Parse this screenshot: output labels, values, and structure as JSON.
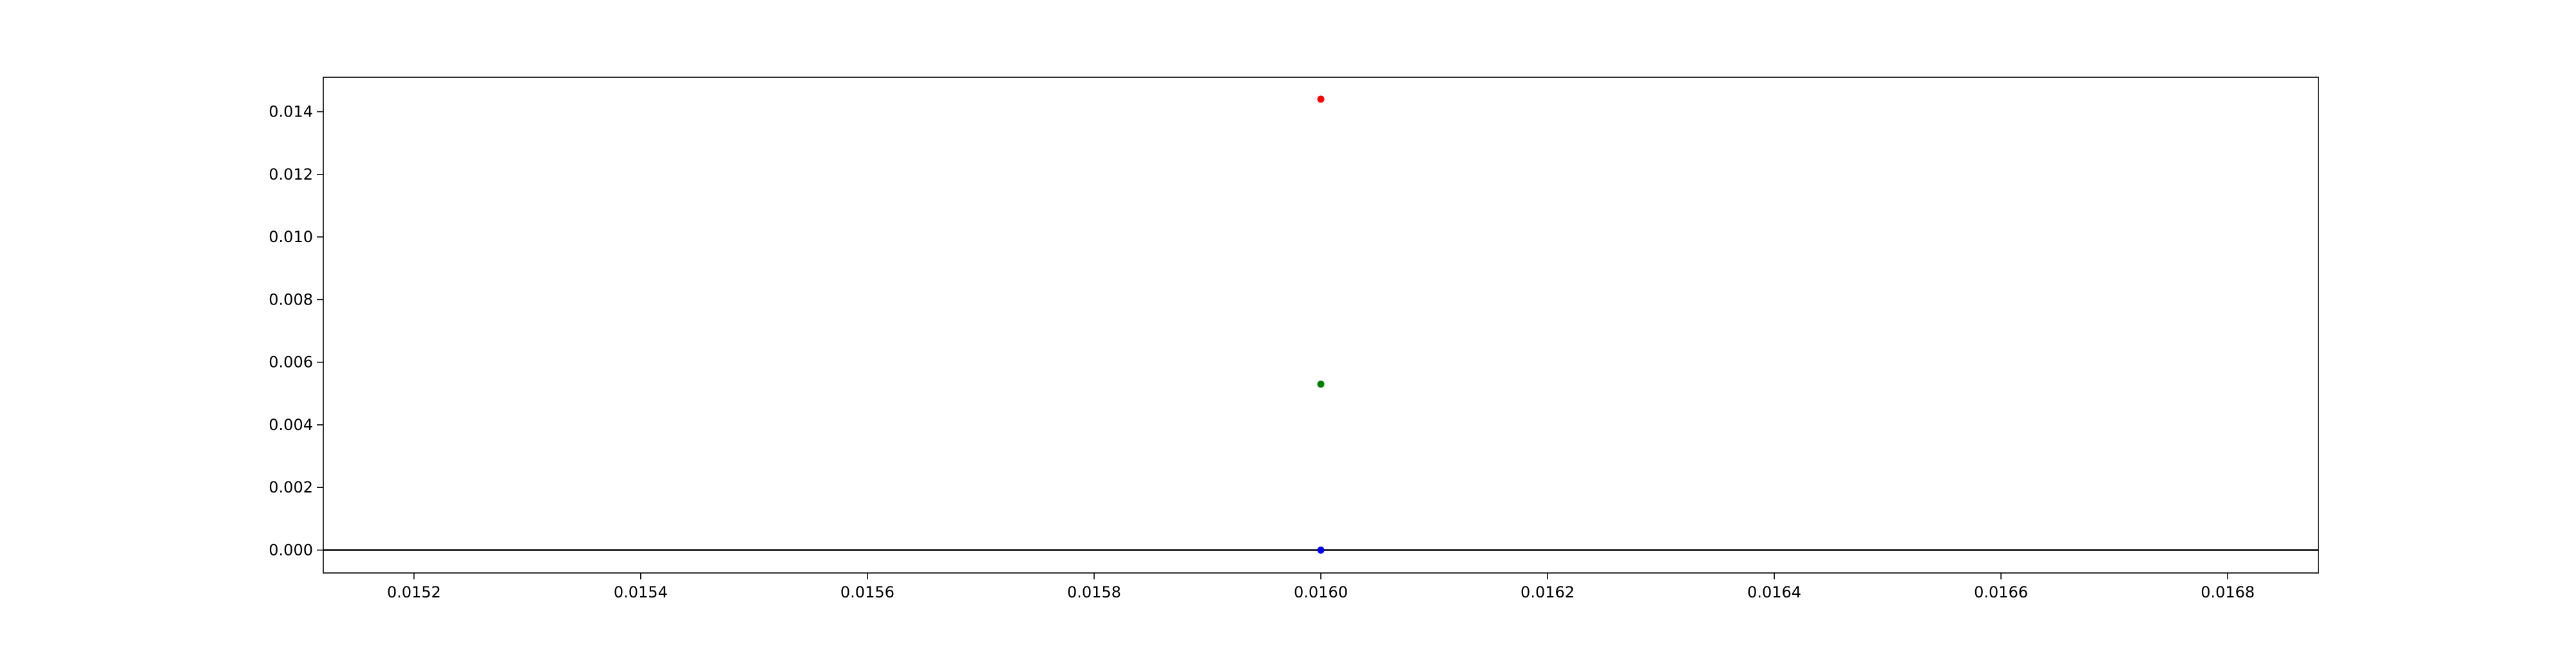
{
  "chart_data": {
    "type": "scatter",
    "title": "",
    "xlabel": "",
    "ylabel": "",
    "xlim": [
      0.01512,
      0.01688
    ],
    "ylim": [
      -0.00073,
      0.0151
    ],
    "xticks": [
      "0.0152",
      "0.0154",
      "0.0156",
      "0.0158",
      "0.0160",
      "0.0162",
      "0.0164",
      "0.0166",
      "0.0168"
    ],
    "xtick_values": [
      0.0152,
      0.0154,
      0.0156,
      0.0158,
      0.016,
      0.0162,
      0.0164,
      0.0166,
      0.0168
    ],
    "yticks": [
      "0.000",
      "0.002",
      "0.004",
      "0.006",
      "0.008",
      "0.010",
      "0.012",
      "0.014"
    ],
    "ytick_values": [
      0,
      0.002,
      0.004,
      0.006,
      0.008,
      0.01,
      0.012,
      0.014
    ],
    "grid": false,
    "legend": false,
    "reference_line": {
      "y": 0,
      "color": "#000000"
    },
    "points": [
      {
        "x": 0.016,
        "y": 0.0144,
        "color": "#ff0000"
      },
      {
        "x": 0.016,
        "y": 0.0053,
        "color": "#008000"
      },
      {
        "x": 0.016,
        "y": 0.0,
        "color": "#0000ff"
      }
    ]
  }
}
